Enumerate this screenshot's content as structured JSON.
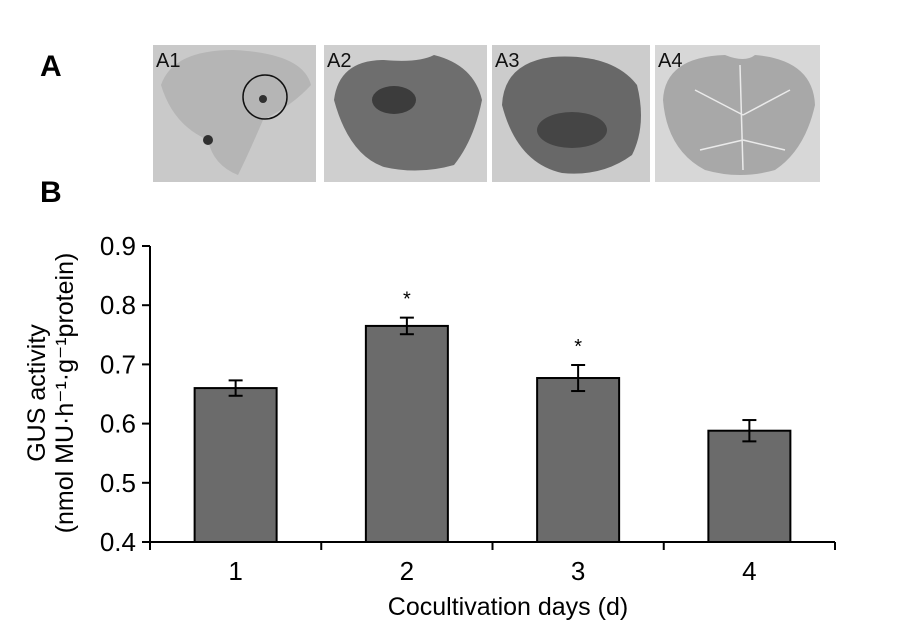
{
  "panels": {
    "a_label": "A",
    "b_label": "B"
  },
  "photos": [
    {
      "label": "A1",
      "tone": "#c9c9c9",
      "leaf": "#b5b5b5",
      "spot": "#303030"
    },
    {
      "label": "A2",
      "tone": "#cfcfcf",
      "leaf": "#6e6e6e",
      "spot": "#3c3c3c"
    },
    {
      "label": "A3",
      "tone": "#cccccc",
      "leaf": "#686868",
      "spot": "#454545"
    },
    {
      "label": "A4",
      "tone": "#d7d7d7",
      "leaf": "#a8a8a8",
      "spot": "#eaeaea"
    }
  ],
  "chart_data": {
    "type": "bar",
    "categories": [
      "1",
      "2",
      "3",
      "4"
    ],
    "values": [
      0.66,
      0.765,
      0.677,
      0.588
    ],
    "errors": [
      0.013,
      0.014,
      0.022,
      0.018
    ],
    "significance": [
      "",
      "*",
      "*",
      ""
    ],
    "ylim": [
      0.4,
      0.9
    ],
    "yticks": [
      "0.4",
      "0.5",
      "0.6",
      "0.7",
      "0.8",
      "0.9"
    ],
    "xlabel": "Cocultivation days (d)",
    "ylabel_line1": "GUS activity",
    "ylabel_line2": "(nmol MU·h⁻¹·g⁻¹protein)",
    "bar_color": "#6b6b6b",
    "grid": false
  }
}
